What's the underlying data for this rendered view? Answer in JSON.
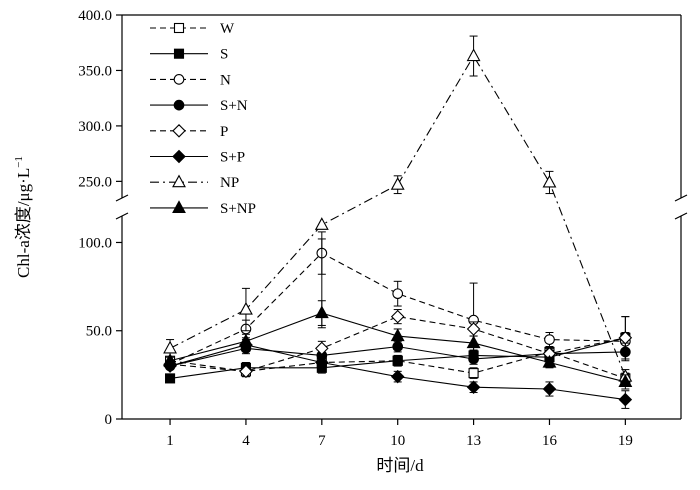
{
  "chart_data": {
    "type": "line",
    "xlabel": "时间/d",
    "ylabel_main": "Chl-a浓度/μg·L",
    "ylabel_sup": "−1",
    "x": [
      1,
      4,
      7,
      10,
      13,
      16,
      19
    ],
    "x_ticks": [
      "1",
      "4",
      "7",
      "10",
      "13",
      "16",
      "19"
    ],
    "y_ticks_lower": [
      "0",
      "50.0",
      "100.0"
    ],
    "y_ticks_upper": [
      "250.0",
      "300.0",
      "350.0",
      "400.0"
    ],
    "y_axis": {
      "lower_segment": [
        0,
        115
      ],
      "upper_segment": [
        235,
        400
      ],
      "broken": true
    },
    "grid": false,
    "legend_position": "top-left",
    "series": [
      {
        "name": "W",
        "line": "dashed",
        "marker": "square",
        "fill": "open",
        "values": [
          33,
          27,
          32,
          33,
          26,
          38,
          23
        ],
        "errors": [
          0,
          3,
          4,
          3,
          3,
          3,
          3
        ]
      },
      {
        "name": "S",
        "line": "solid",
        "marker": "square",
        "fill": "filled",
        "values": [
          23,
          29,
          29,
          33,
          36,
          35,
          46
        ],
        "errors": [
          0,
          3,
          3,
          3,
          3,
          3,
          12
        ]
      },
      {
        "name": "N",
        "line": "dashed",
        "marker": "circle",
        "fill": "open",
        "values": [
          31,
          51,
          94,
          71,
          56,
          45,
          44
        ],
        "errors": [
          0,
          5,
          12,
          7,
          21,
          4,
          5
        ]
      },
      {
        "name": "S+N",
        "line": "solid",
        "marker": "circle",
        "fill": "filled",
        "values": [
          30,
          40,
          36,
          41,
          34,
          37,
          38
        ],
        "errors": [
          0,
          3,
          4,
          3,
          3,
          4,
          5
        ]
      },
      {
        "name": "P",
        "line": "dashed",
        "marker": "diamond",
        "fill": "open",
        "values": [
          31,
          27,
          40,
          58,
          51,
          37,
          46
        ],
        "errors": [
          0,
          3,
          4,
          4,
          4,
          3,
          12
        ]
      },
      {
        "name": "S+P",
        "line": "solid",
        "marker": "diamond",
        "fill": "filled",
        "values": [
          30,
          42,
          32,
          24,
          18,
          17,
          11
        ],
        "errors": [
          0,
          3,
          4,
          3,
          3,
          4,
          5
        ]
      },
      {
        "name": "NP",
        "line": "dashdot",
        "marker": "triangle",
        "fill": "open",
        "values": [
          40,
          62,
          110,
          247,
          363,
          249,
          24
        ],
        "errors": [
          5,
          12,
          8,
          8,
          18,
          10,
          4
        ]
      },
      {
        "name": "S+NP",
        "line": "solid",
        "marker": "triangle",
        "fill": "filled",
        "values": [
          33,
          44,
          60,
          47,
          43,
          32,
          21
        ],
        "errors": [
          0,
          4,
          7,
          4,
          4,
          3,
          4
        ]
      }
    ]
  }
}
